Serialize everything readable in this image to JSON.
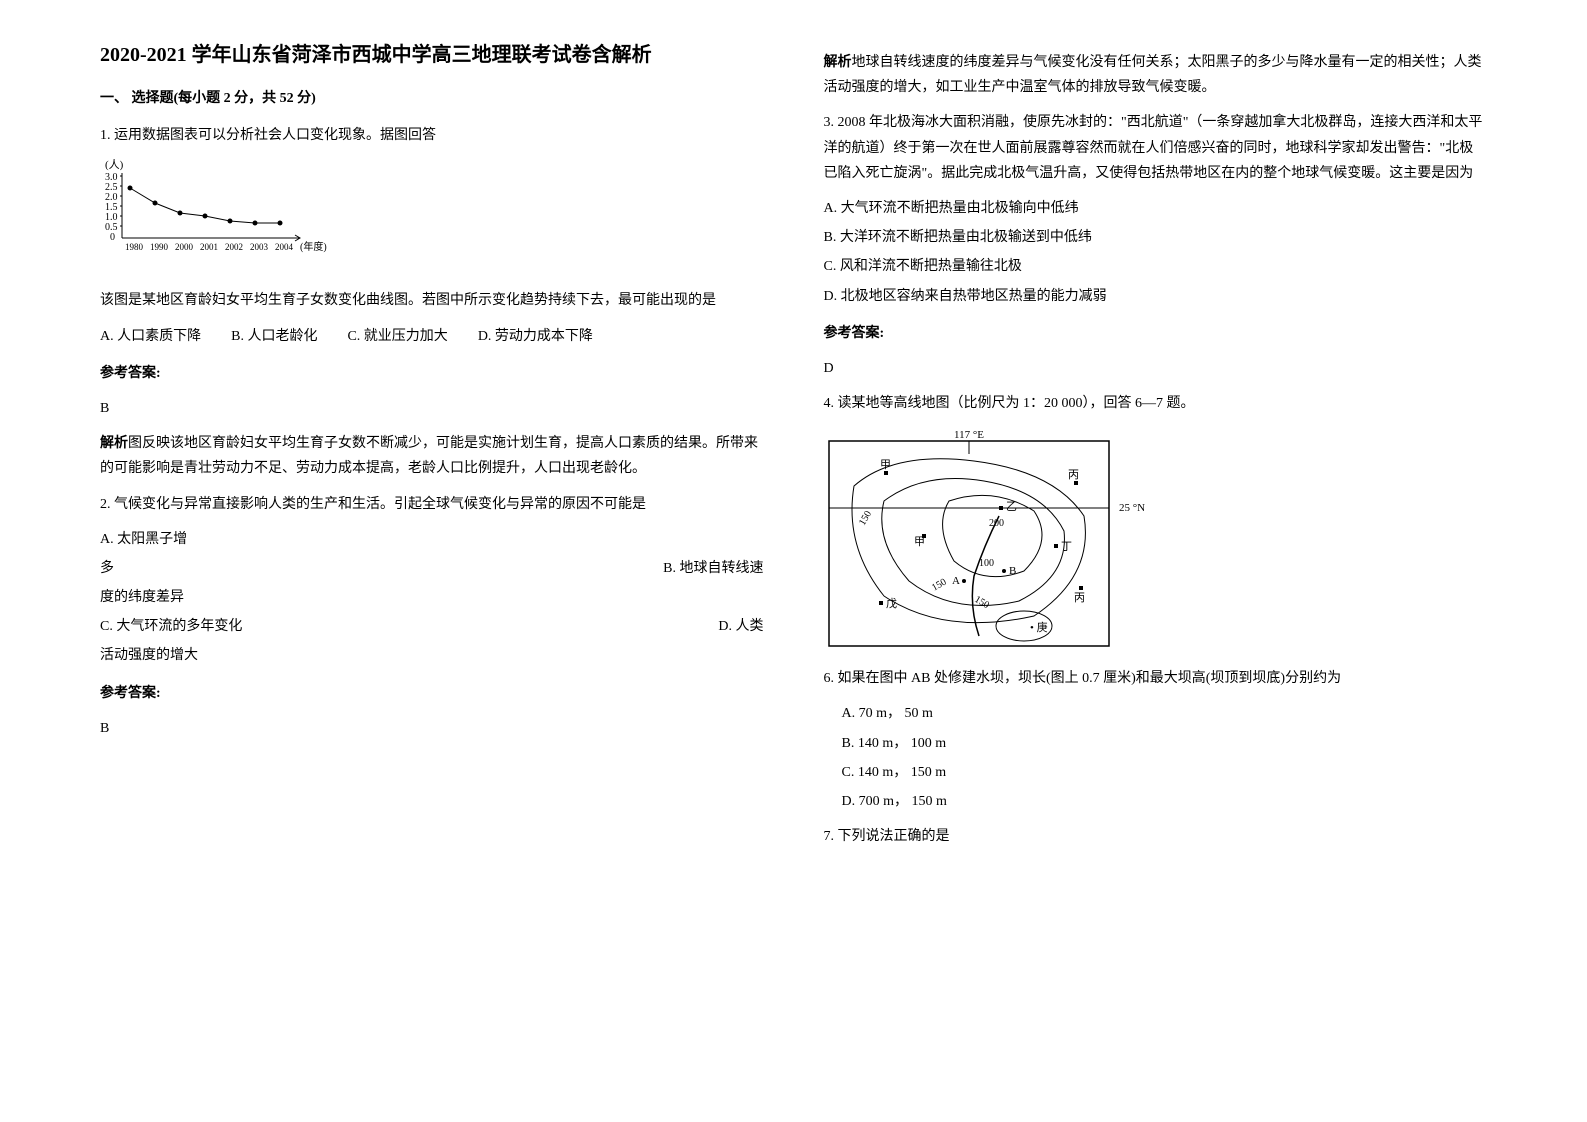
{
  "title": "2020-2021 学年山东省菏泽市西城中学高三地理联考试卷含解析",
  "section1": {
    "header": "一、 选择题(每小题 2 分，共 52 分)",
    "q1": {
      "stem": "1. 运用数据图表可以分析社会人口变化现象。据图回答",
      "chart": {
        "y_label": "(人)",
        "y_ticks": [
          "3.0",
          "2.5",
          "2.0",
          "1.5",
          "1.0",
          "0.5",
          "0"
        ],
        "x_ticks": [
          "1980",
          "1990",
          "2000",
          "2001",
          "2002",
          "2003",
          "2004"
        ],
        "x_label": "(年度)",
        "points": [
          {
            "x": 30,
            "y": 15
          },
          {
            "x": 55,
            "y": 30
          },
          {
            "x": 80,
            "y": 40
          },
          {
            "x": 105,
            "y": 43
          },
          {
            "x": 130,
            "y": 48
          },
          {
            "x": 155,
            "y": 50
          },
          {
            "x": 180,
            "y": 50
          }
        ],
        "line_color": "#000",
        "point_color": "#000",
        "axis_color": "#000"
      },
      "body": "该图是某地区育龄妇女平均生育子女数变化曲线图。若图中所示变化趋势持续下去，最可能出现的是",
      "opts": {
        "A": "A. 人口素质下降",
        "B": "B. 人口老龄化",
        "C": "C. 就业压力加大",
        "D": "D. 劳动力成本下降"
      },
      "answer_label": "参考答案:",
      "answer": "B",
      "explain_label": "解析",
      "explain": "图反映该地区育龄妇女平均生育子女数不断减少，可能是实施计划生育，提高人口素质的结果。所带来的可能影响是青壮劳动力不足、劳动力成本提高，老龄人口比例提升，人口出现老龄化。"
    },
    "q2": {
      "stem": "2. 气候变化与异常直接影响人类的生产和生活。引起全球气候变化与异常的原因不可能是",
      "opts": {
        "A1": "A. 太阳黑子增",
        "A2": "多",
        "B": "B. 地球自转线速",
        "B2": "度的纬度差异",
        "C": "C. 大气环流的多年变化",
        "D": "D. 人类",
        "D2": "活动强度的增大"
      },
      "answer_label": "参考答案:",
      "answer": "B",
      "explain_label": "解析",
      "explain": "地球自转线速度的纬度差异与气候变化没有任何关系；太阳黑子的多少与降水量有一定的相关性；人类活动强度的增大，如工业生产中温室气体的排放导致气候变暖。"
    },
    "q3": {
      "stem": "3. 2008 年北极海冰大面积消融，使原先冰封的：\"西北航道\"（一条穿越加拿大北极群岛，连接大西洋和太平洋的航道）终于第一次在世人面前展露尊容然而就在人们倍感兴奋的同时，地球科学家却发出警告：\"北极已陷入死亡旋涡\"。据此完成北极气温升高，又使得包括热带地区在内的整个地球气候变暖。这主要是因为",
      "opts": {
        "A": "A. 大气环流不断把热量由北极输向中低纬",
        "B": "B. 大洋环流不断把热量由北极输送到中低纬",
        "C": "C. 风和洋流不断把热量输往北极",
        "D": "D. 北极地区容纳来自热带地区热量的能力减弱"
      },
      "answer_label": "参考答案:",
      "answer": "D"
    },
    "q4": {
      "stem": "4. 读某地等高线地图（比例尺为 1：20 000），回答 6—7 题。",
      "map": {
        "lon_label": "117 °E",
        "lat_label": "25 °N",
        "labels": {
          "jia": "甲",
          "yi": "乙",
          "bing": "丙",
          "ding": "丁",
          "wu": "戊",
          "A": "A",
          "B": "B"
        },
        "contours": [
          "100",
          "150",
          "200",
          "150",
          "150"
        ],
        "border_color": "#000",
        "line_color": "#000"
      }
    },
    "q6": {
      "stem": "6. 如果在图中 AB 处修建水坝，坝长(图上 0.7 厘米)和最大坝高(坝顶到坝底)分别约为",
      "opts": {
        "A": "A. 70 m，    50 m",
        "B": "B. 140 m，   100 m",
        "C": "C. 140 m，   150 m",
        "D": "D. 700 m，   150 m"
      }
    },
    "q7": {
      "stem": "7. 下列说法正确的是"
    }
  }
}
